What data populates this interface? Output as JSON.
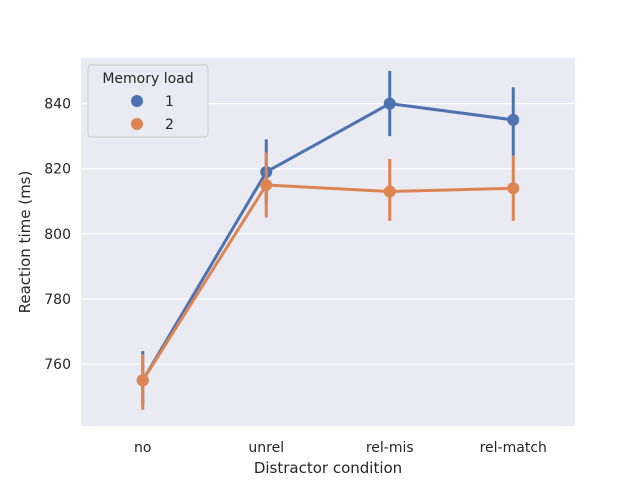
{
  "chart_data": {
    "type": "line",
    "title": "",
    "xlabel": "Distractor condition",
    "ylabel": "Reaction time (ms)",
    "categories": [
      "no",
      "unrel",
      "rel-mis",
      "rel-match"
    ],
    "yticks": [
      760,
      780,
      800,
      820,
      840
    ],
    "ylim": [
      741,
      854
    ],
    "grid": true,
    "legend": {
      "title": "Memory load",
      "placement": "top-left"
    },
    "series": [
      {
        "name": "1",
        "color": "#4c72b0",
        "values": [
          755,
          819,
          840,
          835
        ],
        "ci_low": [
          747,
          809,
          830,
          824
        ],
        "ci_high": [
          764,
          829,
          850,
          845
        ]
      },
      {
        "name": "2",
        "color": "#dd8452",
        "values": [
          755,
          815,
          813,
          814
        ],
        "ci_low": [
          746,
          805,
          804,
          804
        ],
        "ci_high": [
          763,
          825,
          823,
          824
        ]
      }
    ]
  }
}
